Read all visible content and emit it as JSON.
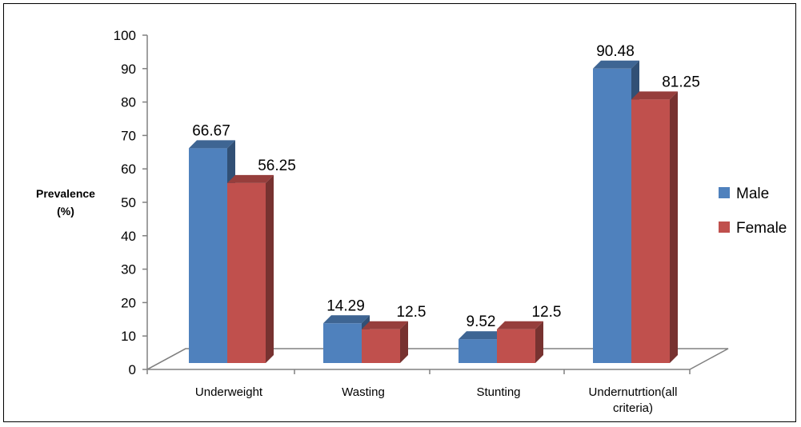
{
  "chart_data": {
    "type": "bar",
    "style": "3d-clustered-column",
    "title": "",
    "ylabel_lines": [
      "Prevalence",
      "(%)"
    ],
    "xlabel": "",
    "ylim": [
      0,
      100
    ],
    "yticks": [
      0,
      10,
      20,
      30,
      40,
      50,
      60,
      70,
      80,
      90,
      100
    ],
    "categories": [
      [
        "Underweight"
      ],
      [
        "Wasting"
      ],
      [
        "Stunting"
      ],
      [
        "Undernutrtion(all",
        "criteria)"
      ]
    ],
    "series": [
      {
        "name": "Male",
        "color": "#4F81BD",
        "values": [
          66.67,
          14.29,
          9.52,
          90.48
        ],
        "labels": [
          "66.67",
          "14.29",
          "9.52",
          "90.48"
        ]
      },
      {
        "name": "Female",
        "color": "#C0504D",
        "values": [
          56.25,
          12.5,
          12.5,
          81.25
        ],
        "labels": [
          "56.25",
          "12.5",
          "12.5",
          "81.25"
        ]
      }
    ],
    "grid": false,
    "legend_position": "right"
  }
}
